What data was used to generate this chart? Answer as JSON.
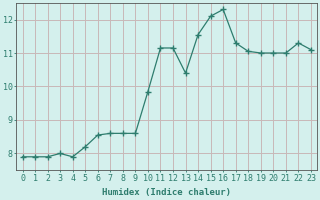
{
  "x": [
    0,
    1,
    2,
    3,
    4,
    5,
    6,
    7,
    8,
    9,
    10,
    11,
    12,
    13,
    14,
    15,
    16,
    17,
    18,
    19,
    20,
    21,
    22,
    23
  ],
  "y": [
    7.9,
    7.9,
    7.9,
    8.0,
    7.9,
    8.2,
    8.55,
    8.6,
    8.6,
    8.6,
    9.85,
    11.15,
    11.15,
    10.4,
    11.55,
    12.1,
    12.3,
    11.3,
    11.05,
    11.0,
    11.0,
    11.0,
    11.3,
    11.1
  ],
  "line_color": "#2e7d6e",
  "marker": "+",
  "marker_size": 4,
  "bg_color": "#d4f0ed",
  "grid_color_major": "#c8b8b8",
  "grid_color_minor": "#d4ecea",
  "xlabel": "Humidex (Indice chaleur)",
  "xlim": [
    -0.5,
    23.5
  ],
  "ylim": [
    7.5,
    12.5
  ],
  "yticks": [
    8,
    9,
    10,
    11,
    12
  ],
  "xticks": [
    0,
    1,
    2,
    3,
    4,
    5,
    6,
    7,
    8,
    9,
    10,
    11,
    12,
    13,
    14,
    15,
    16,
    17,
    18,
    19,
    20,
    21,
    22,
    23
  ],
  "xlabel_fontsize": 6.5,
  "tick_fontsize": 6,
  "tick_color": "#2e7d6e",
  "axis_color": "#555555"
}
